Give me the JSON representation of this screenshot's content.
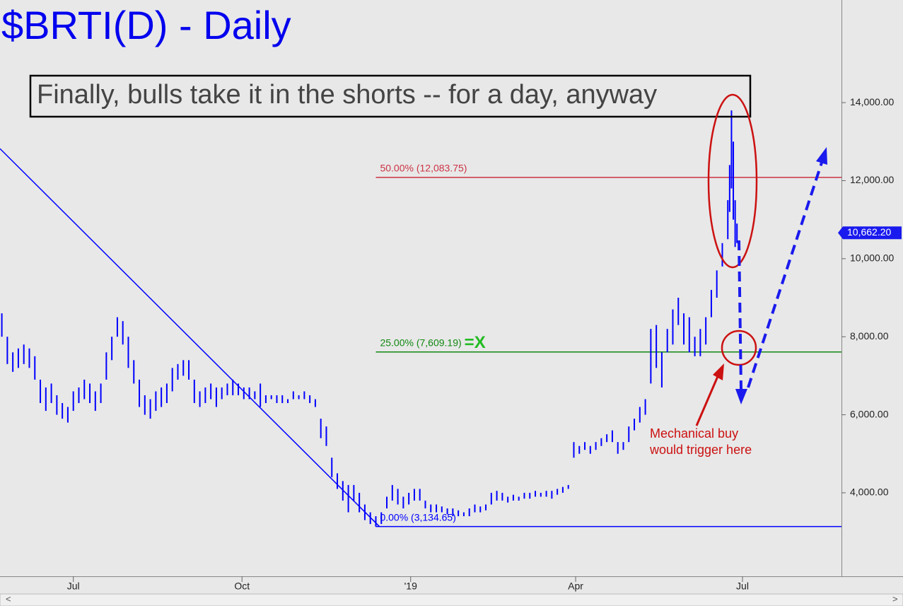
{
  "chart_data": {
    "type": "ohlc",
    "title": "$BRTI(D) - Daily",
    "subtitle": "Finally, bulls take it in the shorts -- for a day, anyway",
    "color": "#0000ff",
    "xlim": [
      -1,
      458
    ],
    "xticks": [
      {
        "value": 39,
        "label": "Jul"
      },
      {
        "value": 131,
        "label": "Oct"
      },
      {
        "value": 223,
        "label": "'19"
      },
      {
        "value": 313,
        "label": "Apr"
      },
      {
        "value": 404,
        "label": "Jul"
      }
    ],
    "ylim": [
      1860,
      16630
    ],
    "yticks": [
      {
        "value": 4000,
        "label": "4,000.00"
      },
      {
        "value": 6000,
        "label": "6,000.00"
      },
      {
        "value": 8000,
        "label": "8,000.00"
      },
      {
        "value": 10000,
        "label": "10,000.00"
      },
      {
        "value": 12000,
        "label": "12,000.00"
      },
      {
        "value": 14000,
        "label": "14,000.00"
      }
    ],
    "last_price": {
      "value": 10662.2,
      "label": "10,662.20"
    },
    "x": [
      0,
      3,
      6,
      9,
      12,
      15,
      18,
      21,
      24,
      27,
      30,
      33,
      36,
      39,
      42,
      45,
      48,
      51,
      54,
      57,
      60,
      63,
      66,
      69,
      72,
      75,
      78,
      81,
      84,
      87,
      90,
      93,
      96,
      99,
      102,
      105,
      108,
      111,
      114,
      117,
      120,
      123,
      126,
      129,
      132,
      135,
      138,
      141,
      144,
      147,
      150,
      153,
      156,
      159,
      162,
      165,
      168,
      171,
      174,
      177,
      180,
      183,
      186,
      189,
      192,
      195,
      198,
      201,
      204,
      207,
      210,
      213,
      216,
      219,
      222,
      225,
      228,
      231,
      234,
      237,
      240,
      243,
      246,
      249,
      252,
      255,
      258,
      261,
      264,
      267,
      270,
      273,
      276,
      279,
      282,
      285,
      288,
      291,
      294,
      297,
      300,
      303,
      306,
      309,
      312,
      315,
      318,
      321,
      324,
      327,
      330,
      333,
      336,
      339,
      342,
      345,
      348,
      351,
      354,
      357,
      360,
      363,
      366,
      369,
      372,
      375,
      378,
      381,
      384,
      387,
      390,
      393,
      396,
      397,
      398,
      399,
      400,
      401
    ],
    "low": [
      8000,
      7300,
      7100,
      7200,
      7300,
      7200,
      6900,
      6300,
      6100,
      6300,
      6000,
      5900,
      5800,
      6100,
      6300,
      6400,
      6300,
      6100,
      6300,
      6900,
      7400,
      8000,
      7800,
      7200,
      6800,
      6200,
      6000,
      5900,
      6100,
      6200,
      6300,
      6600,
      6900,
      7000,
      6900,
      6300,
      6200,
      6300,
      6400,
      6200,
      6400,
      6500,
      6500,
      6500,
      6400,
      6400,
      6400,
      6200,
      6300,
      6400,
      6300,
      6300,
      6300,
      6400,
      6400,
      6400,
      6300,
      6200,
      5400,
      5200,
      4400,
      4100,
      3800,
      3500,
      3800,
      3500,
      3300,
      3200,
      3134.65,
      3200,
      3600,
      3800,
      3700,
      3600,
      3700,
      3800,
      3800,
      3600,
      3500,
      3500,
      3500,
      3450,
      3400,
      3400,
      3400,
      3400,
      3500,
      3500,
      3550,
      3700,
      3800,
      3800,
      3750,
      3800,
      3800,
      3850,
      3850,
      3900,
      3900,
      3900,
      3850,
      3950,
      4000,
      4100,
      4900,
      5000,
      5100,
      5000,
      5100,
      5200,
      5300,
      5300,
      5000,
      5100,
      5300,
      5600,
      5800,
      6000,
      6800,
      7200,
      6700,
      7600,
      7800,
      8300,
      7800,
      7600,
      7500,
      7500,
      7800,
      8500,
      9000,
      9800,
      10500,
      11200,
      11800,
      11000,
      10300,
      10400
    ],
    "high": [
      8600,
      8000,
      7600,
      7700,
      7800,
      7700,
      7500,
      6900,
      6700,
      6800,
      6500,
      6300,
      6200,
      6600,
      6700,
      6900,
      6800,
      6600,
      6800,
      7600,
      8000,
      8500,
      8400,
      8000,
      7400,
      6900,
      6500,
      6400,
      6600,
      6700,
      6800,
      7200,
      7300,
      7400,
      7400,
      6900,
      6600,
      6700,
      6800,
      6700,
      6700,
      6800,
      6900,
      6800,
      6700,
      6700,
      6600,
      6800,
      6500,
      6500,
      6500,
      6500,
      6400,
      6600,
      6500,
      6600,
      6500,
      6400,
      5900,
      5700,
      4900,
      4500,
      4300,
      4200,
      4200,
      4000,
      3700,
      3500,
      3400,
      3500,
      3900,
      4200,
      4100,
      3900,
      4000,
      4100,
      4100,
      3800,
      3700,
      3700,
      3650,
      3600,
      3600,
      3550,
      3500,
      3600,
      3700,
      3650,
      3700,
      4000,
      4050,
      4000,
      3900,
      3950,
      3900,
      4000,
      4000,
      4050,
      4000,
      4050,
      4050,
      4100,
      4150,
      4200,
      5300,
      5200,
      5300,
      5200,
      5300,
      5400,
      5500,
      5600,
      5300,
      5300,
      5700,
      5900,
      6200,
      6400,
      8200,
      8300,
      7600,
      8200,
      8700,
      9000,
      8600,
      8500,
      8000,
      8200,
      8500,
      9200,
      9700,
      10400,
      11500,
      12400,
      13800,
      13000,
      11500,
      10900
    ],
    "trendline": {
      "x": [
        -1,
        206
      ],
      "values": [
        12820,
        3134.65
      ],
      "color": "#0000ff"
    },
    "levels": [
      {
        "label": "50.00% (12,083.75)",
        "value": 12083.75,
        "x0": 204,
        "color": "#cc3344"
      },
      {
        "label": "25.00% (7,609.19)",
        "value": 7609.19,
        "x0": 204,
        "color": "#118811",
        "marker": "=X"
      },
      {
        "label": "0.00% (3,134.65)",
        "value": 3134.65,
        "x0": 204,
        "color": "#0000ff"
      }
    ],
    "annotation": [
      "Mechanical buy",
      "would trigger here"
    ],
    "scrollbar": [
      "<",
      ">"
    ]
  }
}
